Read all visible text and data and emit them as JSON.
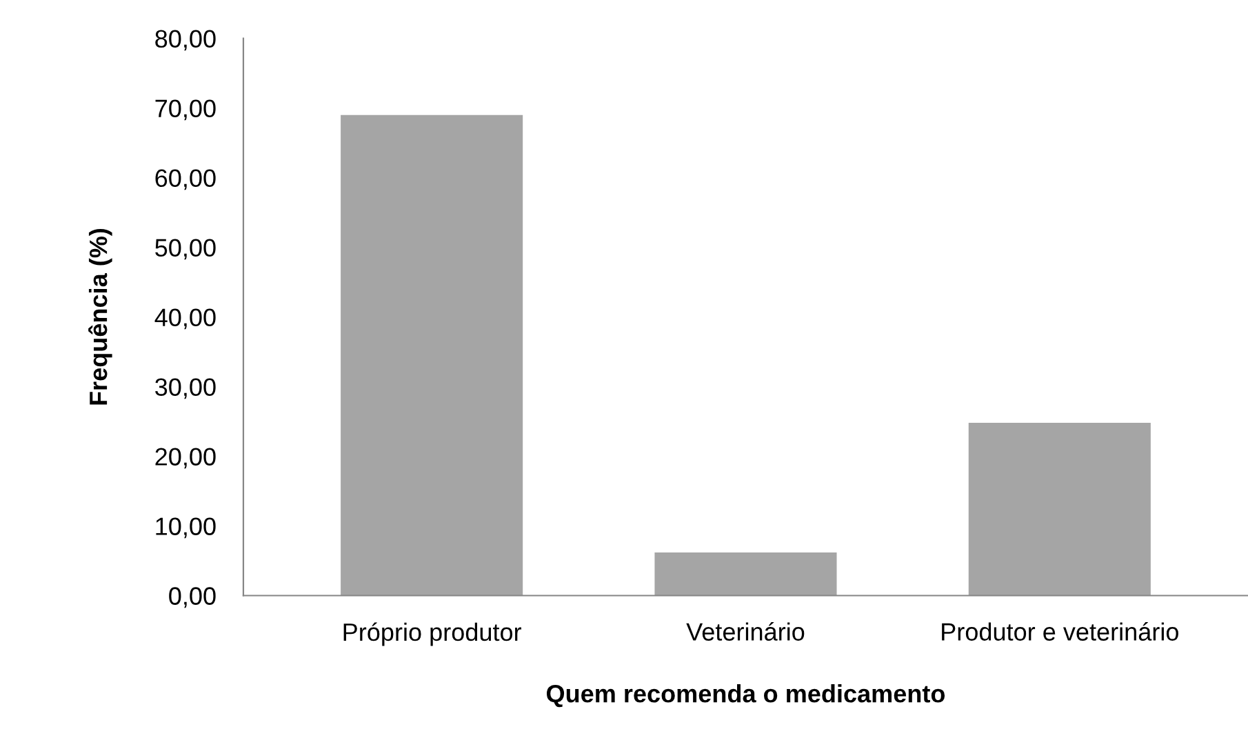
{
  "chart_data": {
    "type": "bar",
    "categories": [
      "Próprio produtor",
      "Veterinário",
      "Produtor e veterinário"
    ],
    "values": [
      69.0,
      6.2,
      24.8
    ],
    "color": "#a5a5a5",
    "xlabel": "Quem recomenda o medicamento",
    "ylabel": "Frequência (%)",
    "ylim": [
      0,
      80
    ],
    "yticks": [
      {
        "value": 0,
        "label": "0,00"
      },
      {
        "value": 10,
        "label": "10,00"
      },
      {
        "value": 20,
        "label": "20,00"
      },
      {
        "value": 30,
        "label": "30,00"
      },
      {
        "value": 40,
        "label": "40,00"
      },
      {
        "value": 50,
        "label": "50,00"
      },
      {
        "value": 60,
        "label": "60,00"
      },
      {
        "value": 70,
        "label": "70,00"
      },
      {
        "value": 80,
        "label": "80,00"
      }
    ],
    "grid": false
  }
}
